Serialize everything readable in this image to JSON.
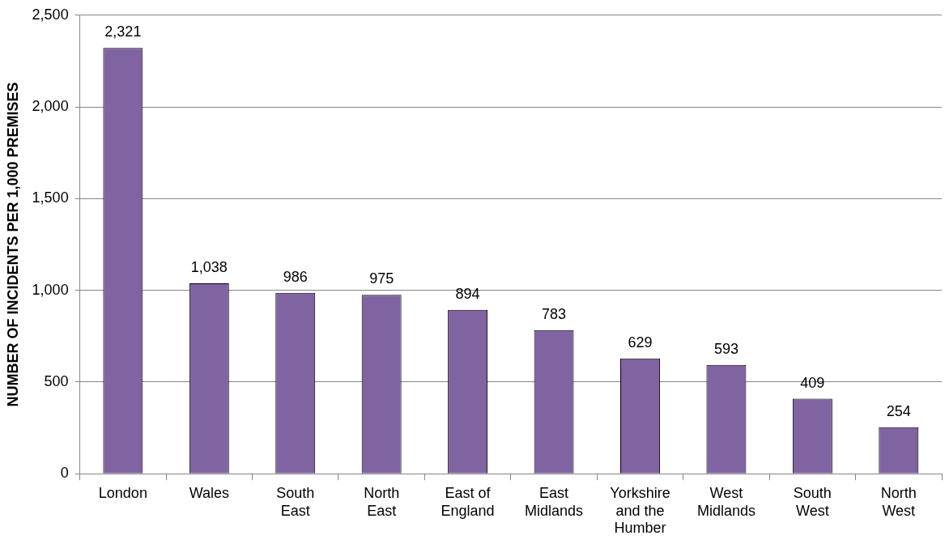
{
  "chart_data": {
    "type": "bar",
    "ylabel": "NUMBER OF INCIDENTS PER 1,000 PREMISES",
    "categories": [
      "London",
      "Wales",
      "South East",
      "North East",
      "East of England",
      "East Midlands",
      "Yorkshire and the Humber",
      "West Midlands",
      "South West",
      "North West"
    ],
    "values": [
      2321,
      1038,
      986,
      975,
      894,
      783,
      629,
      593,
      409,
      254
    ],
    "color": "#8064a2",
    "ylim": [
      0,
      2500
    ],
    "yticks": [
      0,
      500,
      {
        "value": 1000,
        "label": "1,000"
      },
      {
        "value": 1500,
        "label": "1,500"
      },
      {
        "value": 2000,
        "label": "2,000"
      },
      {
        "value": 2500,
        "label": "2,500"
      }
    ],
    "value_labels": [
      "2,321",
      "1,038",
      "986",
      "975",
      "894",
      "783",
      "629",
      "593",
      "409",
      "254"
    ],
    "grid": "y",
    "legend": false
  }
}
